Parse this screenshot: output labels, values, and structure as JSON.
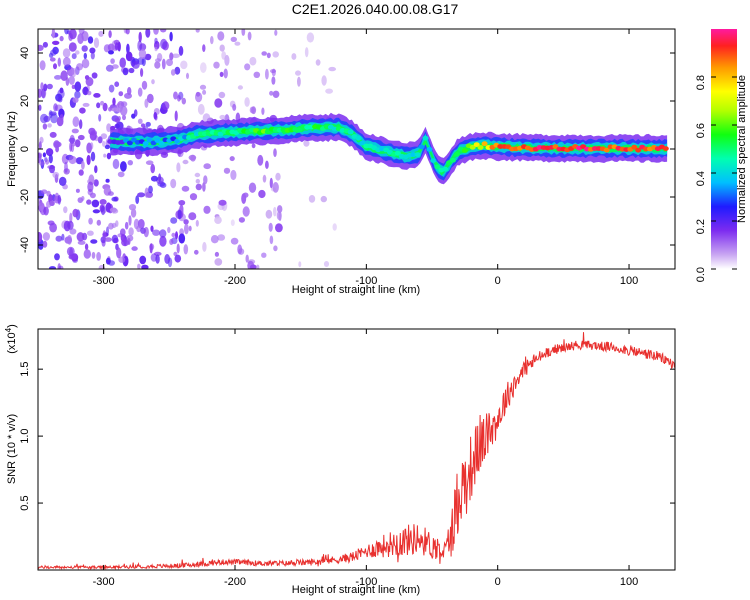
{
  "title": "C2E1.2026.040.00.08.G17",
  "chart_data": [
    {
      "id": "spectrogram",
      "type": "heatmap",
      "xlabel": "Height of straight line (km)",
      "ylabel": "Frequency (Hz)",
      "xlim": [
        -350,
        135
      ],
      "ylim": [
        -50,
        50
      ],
      "xticks": [
        -300,
        -200,
        -100,
        0,
        100
      ],
      "yticks": [
        -40,
        -20,
        0,
        20,
        40
      ],
      "xtick_labels": [
        "-300",
        "-200",
        "-100",
        "0",
        "100"
      ],
      "ytick_labels": [
        "-40",
        "-20",
        "0",
        "20",
        "40"
      ],
      "colorbar": {
        "label": "Normalized spectral amplitude",
        "range": [
          0,
          1
        ],
        "ticks": [
          0,
          0.2,
          0.4,
          0.6,
          0.8
        ],
        "tick_labels": [
          "0.0",
          "0.2",
          "0.4",
          "0.6",
          "0.8"
        ]
      },
      "ridge": [
        {
          "x": -295,
          "f": 3,
          "a": 0.25
        },
        {
          "x": -260,
          "f": 3,
          "a": 0.3
        },
        {
          "x": -240,
          "f": 4,
          "a": 0.35
        },
        {
          "x": -230,
          "f": 6,
          "a": 0.45
        },
        {
          "x": -200,
          "f": 7,
          "a": 0.5
        },
        {
          "x": -180,
          "f": 7.5,
          "a": 0.55
        },
        {
          "x": -160,
          "f": 8,
          "a": 0.55
        },
        {
          "x": -140,
          "f": 9,
          "a": 0.5
        },
        {
          "x": -120,
          "f": 9,
          "a": 0.45
        },
        {
          "x": -110,
          "f": 6,
          "a": 0.4
        },
        {
          "x": -100,
          "f": 1,
          "a": 0.4
        },
        {
          "x": -85,
          "f": -1,
          "a": 0.45
        },
        {
          "x": -70,
          "f": -3,
          "a": 0.45
        },
        {
          "x": -60,
          "f": -2,
          "a": 0.4
        },
        {
          "x": -55,
          "f": 4,
          "a": 0.4
        },
        {
          "x": -48,
          "f": -6,
          "a": 0.45
        },
        {
          "x": -42,
          "f": -10,
          "a": 0.4
        },
        {
          "x": -30,
          "f": -1,
          "a": 0.55
        },
        {
          "x": -20,
          "f": 1,
          "a": 0.65
        },
        {
          "x": -10,
          "f": 1.5,
          "a": 0.75
        },
        {
          "x": 0,
          "f": 1,
          "a": 0.85
        },
        {
          "x": 20,
          "f": 0.5,
          "a": 0.92
        },
        {
          "x": 60,
          "f": 0.3,
          "a": 0.95
        },
        {
          "x": 100,
          "f": 0.2,
          "a": 0.9
        },
        {
          "x": 130,
          "f": 0.2,
          "a": 0.9
        }
      ]
    },
    {
      "id": "snr",
      "type": "line",
      "xlabel": "Height of straight line (km)",
      "ylabel": "SNR (10 * v/v)",
      "yscale_label": "(x10",
      "yscale_exponent": "4",
      "yscale_close": ")",
      "xlim": [
        -350,
        135
      ],
      "ylim": [
        0,
        1.8
      ],
      "xticks": [
        -300,
        -200,
        -100,
        0,
        100
      ],
      "yticks": [
        0.5,
        1.0,
        1.5
      ],
      "xtick_labels": [
        "-300",
        "-200",
        "-100",
        "0",
        "100"
      ],
      "ytick_labels": [
        "0.5",
        "1.0",
        "1.5"
      ],
      "color": "#e8302e",
      "series": [
        {
          "name": "SNR",
          "x": [
            -350,
            -300,
            -250,
            -230,
            -210,
            -200,
            -180,
            -160,
            -140,
            -120,
            -110,
            -100,
            -90,
            -80,
            -70,
            -60,
            -50,
            -40,
            -35,
            -30,
            -25,
            -20,
            -15,
            -10,
            -5,
            0,
            5,
            10,
            20,
            30,
            40,
            50,
            60,
            70,
            80,
            90,
            100,
            110,
            120,
            130,
            135
          ],
          "y": [
            0.02,
            0.02,
            0.03,
            0.04,
            0.06,
            0.06,
            0.05,
            0.05,
            0.06,
            0.08,
            0.1,
            0.14,
            0.17,
            0.2,
            0.22,
            0.24,
            0.18,
            0.14,
            0.28,
            0.55,
            0.65,
            0.78,
            0.9,
            0.98,
            1.05,
            1.12,
            1.25,
            1.35,
            1.5,
            1.58,
            1.64,
            1.66,
            1.68,
            1.68,
            1.67,
            1.66,
            1.64,
            1.62,
            1.6,
            1.56,
            1.52
          ],
          "noise": [
            0.01,
            0.01,
            0.015,
            0.02,
            0.02,
            0.02,
            0.02,
            0.02,
            0.025,
            0.03,
            0.04,
            0.05,
            0.08,
            0.1,
            0.12,
            0.12,
            0.1,
            0.08,
            0.18,
            0.3,
            0.28,
            0.25,
            0.22,
            0.18,
            0.15,
            0.13,
            0.12,
            0.1,
            0.07,
            0.05,
            0.04,
            0.035,
            0.035,
            0.035,
            0.035,
            0.04,
            0.04,
            0.04,
            0.04,
            0.04,
            0.04
          ]
        }
      ]
    }
  ]
}
